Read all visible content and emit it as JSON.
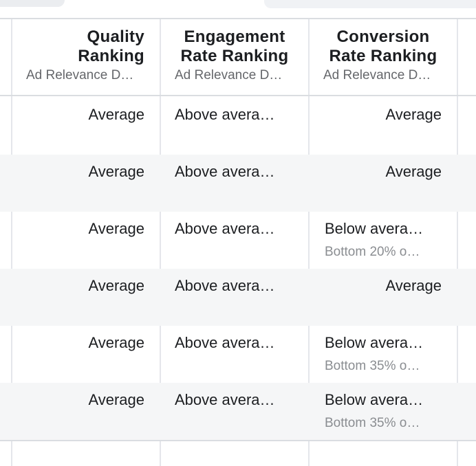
{
  "header": {
    "columns": [
      {
        "title_line1": "Quality",
        "title_line2": "Ranking",
        "subtitle": "Ad Relevance D…"
      },
      {
        "title_line1": "Engagement",
        "title_line2": "Rate Ranking",
        "subtitle": "Ad Relevance D…"
      },
      {
        "title_line1": "Conversion",
        "title_line2": "Rate Ranking",
        "subtitle": "Ad Relevance D…"
      }
    ]
  },
  "rows": [
    {
      "quality": "Average",
      "engagement": "Above avera…",
      "conversion": "Average",
      "conversion_sub": ""
    },
    {
      "quality": "Average",
      "engagement": "Above avera…",
      "conversion": "Average",
      "conversion_sub": ""
    },
    {
      "quality": "Average",
      "engagement": "Above avera…",
      "conversion": "Below avera…",
      "conversion_sub": "Bottom 20% o…"
    },
    {
      "quality": "Average",
      "engagement": "Above avera…",
      "conversion": "Average",
      "conversion_sub": ""
    },
    {
      "quality": "Average",
      "engagement": "Above avera…",
      "conversion": "Below avera…",
      "conversion_sub": "Bottom 35% o…"
    },
    {
      "quality": "Average",
      "engagement": "Above avera…",
      "conversion": "Below avera…",
      "conversion_sub": "Bottom 35% o…"
    }
  ]
}
